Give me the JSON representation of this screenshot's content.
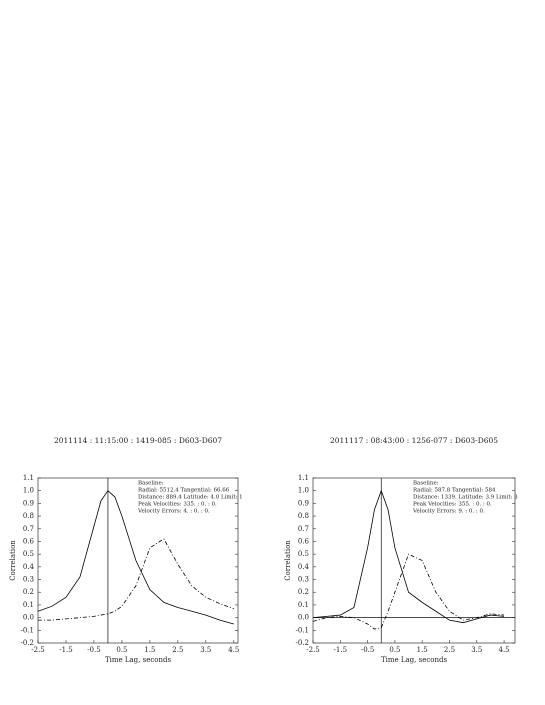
{
  "chart_data": [
    {
      "type": "line",
      "title": "2011114 : 11:15:00 : 1419-085 : D603-D607",
      "xlabel": "Time Lag, seconds",
      "ylabel": "Correlation",
      "annotation": [
        "Baseline:",
        "Radial:   5512.4 Tangential:   66.66",
        "Distance:  889.4 Latitude:  4.0 Limit: 1",
        "Peak Velocities: 335. :  0. :  0.",
        "Velocity Errors:  4. :  0. :  0."
      ],
      "x": [
        -2.5,
        -2,
        -1.5,
        -1,
        -0.5,
        -0.25,
        0,
        0.25,
        0.5,
        1,
        1.5,
        2,
        2.5,
        3,
        3.5,
        4,
        4.5
      ],
      "series": [
        {
          "color": "#000000",
          "values": [
            0.05,
            0.09,
            0.16,
            0.32,
            0.72,
            0.92,
            1.0,
            0.95,
            0.8,
            0.45,
            0.22,
            0.12,
            0.08,
            0.05,
            0.02,
            -0.02,
            -0.05
          ]
        },
        {
          "color": "#000000",
          "values": [
            -0.02,
            -0.02,
            -0.01,
            0,
            0.01,
            0.02,
            0.03,
            0.05,
            0.09,
            0.25,
            0.55,
            0.62,
            0.42,
            0.25,
            0.16,
            0.11,
            0.07
          ]
        }
      ],
      "xlim": [
        -2.5,
        4.65
      ],
      "xticks": [
        -2.5,
        -1.5,
        -0.5,
        0.5,
        1.5,
        2.5,
        3.5,
        4.5
      ],
      "ylim": [
        -0.2,
        1.1
      ],
      "yticks": [
        1.1,
        {
          "value": 1,
          "label": "1.0"
        },
        0.9,
        0.8,
        0.7,
        0.6,
        0.5,
        0.4,
        0.3,
        0.2,
        0.1,
        {
          "value": 0,
          "label": "0.0"
        },
        -0.1,
        -0.2
      ],
      "marker_x": 0,
      "zero_line": false
    },
    {
      "type": "line",
      "title": "2011117 : 08:43:00 : 1256-077 : D603-D605",
      "xlabel": "Time Lag, seconds",
      "ylabel": "Correlation",
      "annotation": [
        "Baseline:",
        "Radial:  587.8 Tangential:  584",
        "Distance: 1339. Latitude:  3.9 Limit: 3",
        "Peak Velocities: 355. :  0. :  0.",
        "Velocity Errors:  9. :  0. :  0."
      ],
      "x": [
        -2.5,
        -2,
        -1.5,
        -1,
        -0.5,
        -0.25,
        0,
        0.25,
        0.5,
        1,
        1.5,
        2,
        2.5,
        3,
        3.5,
        4,
        4.5
      ],
      "series": [
        {
          "color": "#000000",
          "values": [
            0.0,
            0.01,
            0.02,
            0.08,
            0.55,
            0.85,
            1.0,
            0.85,
            0.55,
            0.2,
            0.12,
            0.05,
            -0.02,
            -0.04,
            -0.01,
            0.02,
            0.01
          ]
        },
        {
          "color": "#000000",
          "values": [
            -0.03,
            0.0,
            0.01,
            0.0,
            -0.05,
            -0.09,
            -0.08,
            0.05,
            0.2,
            0.5,
            0.45,
            0.2,
            0.05,
            -0.02,
            0.0,
            0.03,
            0.02
          ]
        }
      ],
      "xlim": [
        -2.5,
        4.9
      ],
      "xticks": [
        -2.5,
        -1.5,
        -0.5,
        0.5,
        1.5,
        2.5,
        3.5,
        4.5
      ],
      "ylim": [
        -0.2,
        1.1
      ],
      "yticks": [
        1.1,
        {
          "value": 1,
          "label": "1.0"
        },
        0.9,
        0.8,
        0.7,
        0.6,
        0.5,
        0.4,
        0.3,
        0.2,
        0.1,
        {
          "value": 0,
          "label": "0.0"
        },
        -0.1,
        -0.2
      ],
      "marker_x": 0,
      "zero_line": true
    }
  ]
}
